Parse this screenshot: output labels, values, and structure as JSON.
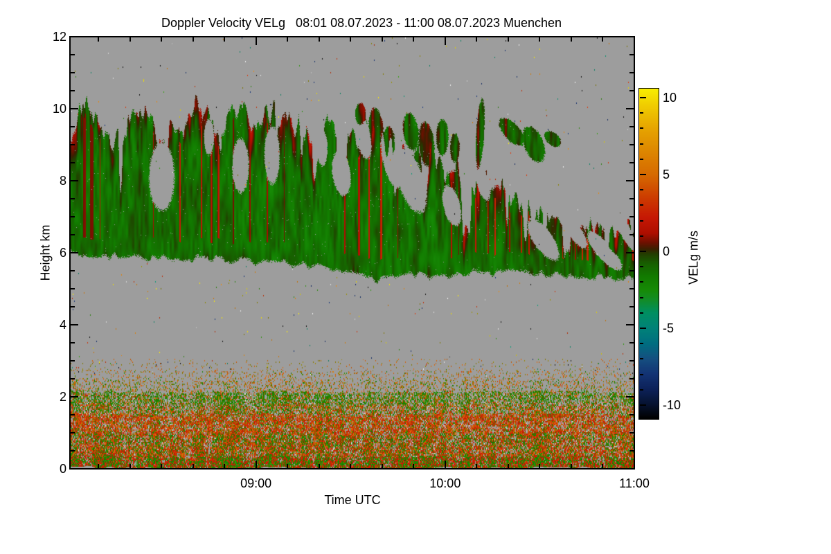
{
  "chart_data": {
    "type": "heatmap",
    "title": "Doppler Velocity VELg   08:01 08.07.2023 - 11:00 08.07.2023 Muenchen",
    "xlabel": "Time UTC",
    "ylabel": "Height km",
    "x_start": "08:01",
    "x_end": "11:00",
    "x_span_minutes": 179,
    "x_major_ticks": [
      {
        "minute": 59,
        "label": "09:00"
      },
      {
        "minute": 119,
        "label": "10:00"
      },
      {
        "minute": 179,
        "label": "11:00"
      }
    ],
    "x_minor_tick_every_min": 10,
    "ylim": [
      0,
      12
    ],
    "y_major_ticks": [
      {
        "km": 0,
        "label": "0"
      },
      {
        "km": 2,
        "label": "2"
      },
      {
        "km": 4,
        "label": "4"
      },
      {
        "km": 6,
        "label": "6"
      },
      {
        "km": 8,
        "label": "8"
      },
      {
        "km": 10,
        "label": "10"
      },
      {
        "km": 12,
        "label": "12"
      }
    ],
    "y_minor_tick_km": 0.5,
    "background_color": "#9d9d9d",
    "colorbar": {
      "label": "VELg m/s",
      "vmin": -10.9,
      "vmax": 10.6,
      "ticks": [
        {
          "v": 10,
          "label": "10"
        },
        {
          "v": 5,
          "label": "5"
        },
        {
          "v": 0,
          "label": "0"
        },
        {
          "v": -5,
          "label": "-5"
        },
        {
          "v": -10,
          "label": "-10"
        }
      ],
      "minor_every": 1
    },
    "colormap_stops": [
      [
        10.6,
        "#f8ee00"
      ],
      [
        9.5,
        "#f0cc00"
      ],
      [
        8,
        "#e6a400"
      ],
      [
        6.5,
        "#dd8600"
      ],
      [
        5,
        "#d66a00"
      ],
      [
        3.5,
        "#cc3c00"
      ],
      [
        2.2,
        "#c61804"
      ],
      [
        1.2,
        "#ae0e00"
      ],
      [
        0.6,
        "#701000"
      ],
      [
        0.15,
        "#3a2000"
      ],
      [
        -0.15,
        "#233c00"
      ],
      [
        -0.8,
        "#176000"
      ],
      [
        -1.6,
        "#127a00"
      ],
      [
        -2.5,
        "#168a06"
      ],
      [
        -3.2,
        "#128c2a"
      ],
      [
        -4,
        "#008f62"
      ],
      [
        -5,
        "#008278"
      ],
      [
        -6,
        "#006e80"
      ],
      [
        -7,
        "#154f80"
      ],
      [
        -8,
        "#133374"
      ],
      [
        -9,
        "#0c2158"
      ],
      [
        -10,
        "#06122e"
      ],
      [
        -10.9,
        "#000000"
      ]
    ],
    "cloud_layer": {
      "description": "mid-level cloud band of mostly negative (green) velocities with orange/red updraft streaks, spiky top descending from ~10 km to ~6.6 km, base ~5.9 to ~5.3 km",
      "top_km_points": [
        [
          0,
          9.4
        ],
        [
          5,
          10.0
        ],
        [
          10,
          9.5
        ],
        [
          16,
          9.2
        ],
        [
          22,
          10.0
        ],
        [
          28,
          9.2
        ],
        [
          34,
          9.3
        ],
        [
          40,
          10.1
        ],
        [
          47,
          9.6
        ],
        [
          53,
          10.1
        ],
        [
          58,
          9.4
        ],
        [
          64,
          9.9
        ],
        [
          70,
          9.8
        ],
        [
          76,
          9.1
        ],
        [
          82,
          9.6
        ],
        [
          88,
          9.3
        ],
        [
          95,
          9.5
        ],
        [
          100,
          8.9
        ],
        [
          106,
          8.7
        ],
        [
          112,
          8.9
        ],
        [
          118,
          8.5
        ],
        [
          124,
          8.2
        ],
        [
          130,
          8.0
        ],
        [
          136,
          7.8
        ],
        [
          142,
          7.4
        ],
        [
          148,
          7.1
        ],
        [
          155,
          7.0
        ],
        [
          163,
          6.9
        ],
        [
          172,
          6.75
        ],
        [
          179,
          6.6
        ]
      ],
      "base_km_points": [
        [
          0,
          5.95
        ],
        [
          25,
          5.85
        ],
        [
          50,
          5.8
        ],
        [
          75,
          5.65
        ],
        [
          88,
          5.5
        ],
        [
          97,
          5.2
        ],
        [
          105,
          5.45
        ],
        [
          115,
          5.35
        ],
        [
          130,
          5.45
        ],
        [
          145,
          5.4
        ],
        [
          160,
          5.35
        ],
        [
          179,
          5.28
        ]
      ],
      "holes": [
        [
          29,
          8.1,
          4,
          0.95,
          0
        ],
        [
          44,
          9.2,
          1.6,
          0.5,
          0
        ],
        [
          54,
          8.4,
          2.6,
          0.75,
          0
        ],
        [
          64,
          8.7,
          2.4,
          0.8,
          0
        ],
        [
          80,
          8.9,
          1.6,
          0.5,
          0
        ],
        [
          86,
          8.2,
          3,
          0.6,
          0.05
        ],
        [
          93,
          9.2,
          2.6,
          0.55,
          0.1
        ],
        [
          102,
          8.6,
          3.5,
          0.7,
          0.12
        ],
        [
          108,
          8.0,
          5,
          0.75,
          0.1
        ],
        [
          121,
          7.3,
          3,
          0.5,
          0.08
        ],
        [
          131,
          7.9,
          2.2,
          0.4,
          0.1
        ],
        [
          150,
          6.35,
          5,
          0.4,
          0.08
        ],
        [
          159,
          6.7,
          5,
          0.32,
          0.1
        ],
        [
          168,
          6.15,
          4,
          0.3,
          0.08
        ],
        [
          174,
          6.85,
          4.5,
          0.28,
          0.1
        ],
        [
          171,
          5.85,
          4,
          0.25,
          0.06
        ],
        [
          177,
          6.4,
          3,
          0.22,
          0.1
        ]
      ],
      "fragments": [
        [
          92,
          9.85,
          1.7,
          0.3,
          0
        ],
        [
          97,
          9.45,
          2.3,
          0.55,
          0.05
        ],
        [
          101,
          9.05,
          1.9,
          0.45,
          0
        ],
        [
          108,
          9.35,
          2.5,
          0.5,
          0.05
        ],
        [
          113,
          9.0,
          2.5,
          0.6,
          0.05
        ],
        [
          118,
          9.2,
          1.9,
          0.5,
          0
        ],
        [
          122,
          8.9,
          1.5,
          0.4,
          0
        ],
        [
          130,
          9.3,
          1.4,
          0.85,
          -0.3
        ],
        [
          140,
          9.35,
          4,
          0.3,
          0.06
        ],
        [
          147,
          9.0,
          3.5,
          0.45,
          0.06
        ],
        [
          153,
          9.15,
          2.6,
          0.2,
          0.04
        ]
      ]
    },
    "boundary_layer": {
      "description": "speckled aerosol/insect layer below ~2.7 km: red/orange updraft bands near 1-1.5 km and surface, green band near 1.8-2.1 km, sparse orange specks fading to gray above 2.4 km",
      "palette": {
        "red": "#c62804",
        "red2": "#d81404",
        "orange": "#cf6008",
        "olive": "#8c7c00",
        "green": "#1f8400",
        "green2": "#2aa008",
        "dkgreen": "#135f00",
        "gray": "#9d9d9d",
        "white": "#c9c9c9"
      },
      "bands": [
        {
          "hmin": 0.0,
          "hmax": 0.32,
          "w": {
            "green": 0.34,
            "green2": 0.1,
            "red": 0.3,
            "red2": 0.12,
            "orange": 0.06,
            "gray": 0.06,
            "dkgreen": 0.02
          }
        },
        {
          "hmin": 0.32,
          "hmax": 0.62,
          "w": {
            "red": 0.3,
            "orange": 0.2,
            "green": 0.24,
            "olive": 0.07,
            "gray": 0.14,
            "white": 0.03,
            "red2": 0.02
          }
        },
        {
          "hmin": 0.62,
          "hmax": 0.95,
          "w": {
            "green": 0.3,
            "red": 0.26,
            "orange": 0.18,
            "olive": 0.06,
            "gray": 0.16,
            "white": 0.04
          }
        },
        {
          "hmin": 0.95,
          "hmax": 1.5,
          "w": {
            "red": 0.34,
            "orange": 0.24,
            "olive": 0.08,
            "green": 0.12,
            "gray": 0.18,
            "white": 0.04
          }
        },
        {
          "hmin": 1.5,
          "hmax": 1.78,
          "w": {
            "red": 0.14,
            "orange": 0.18,
            "olive": 0.08,
            "green": 0.26,
            "gray": 0.3,
            "white": 0.04
          }
        },
        {
          "hmin": 1.78,
          "hmax": 2.12,
          "w": {
            "green": 0.38,
            "olive": 0.1,
            "orange": 0.1,
            "red": 0.04,
            "gray": 0.34,
            "white": 0.04
          }
        },
        {
          "hmin": 2.12,
          "hmax": 2.45,
          "w": {
            "orange": 0.12,
            "olive": 0.08,
            "green": 0.06,
            "red": 0.01,
            "gray": 0.73
          }
        },
        {
          "hmin": 2.45,
          "hmax": 2.72,
          "w": {
            "orange": 0.07,
            "olive": 0.05,
            "green": 0.015,
            "gray": 0.865
          }
        },
        {
          "hmin": 2.72,
          "hmax": 3.05,
          "w": {
            "orange": 0.02,
            "olive": 0.018,
            "gray": 0.962
          }
        }
      ]
    },
    "speckle_colors": [
      "#e8d800",
      "#d07808",
      "#c43008",
      "#0a8a6a",
      "#15316e",
      "#101010",
      "#2f8c10",
      "#8a8400",
      "#d8d8d8"
    ]
  }
}
